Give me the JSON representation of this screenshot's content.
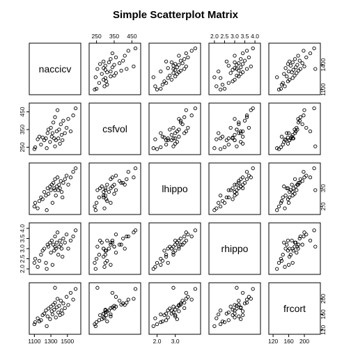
{
  "chart_data": {
    "type": "scatter",
    "title": "Simple Scatterplot Matrix",
    "variables": [
      "naccicv",
      "csfvol",
      "lhippo",
      "rhippo",
      "frcort"
    ],
    "axis_ticks": {
      "naccicv": {
        "values": [
          1100,
          1300,
          1500
        ],
        "labels": [
          "1100",
          "1300",
          "1500"
        ]
      },
      "csfvol": {
        "values": [
          250,
          350,
          450
        ],
        "labels": [
          "250",
          "350",
          "450"
        ]
      },
      "lhippo": {
        "values": [
          2.0,
          3.0
        ],
        "labels": [
          "2.0",
          "3.0"
        ]
      },
      "rhippo": {
        "values": [
          2.0,
          2.5,
          3.0,
          3.5,
          4.0
        ],
        "labels": [
          "2.0",
          "2.5",
          "3.0",
          "3.5",
          "4.0"
        ]
      },
      "frcort": {
        "values": [
          120,
          160,
          200
        ],
        "labels": [
          "120",
          "160",
          "200"
        ]
      }
    },
    "axis_ticks_right_top": {
      "naccicv": {
        "values": [
          1100,
          1400
        ],
        "labels": [
          "1100",
          "1400"
        ]
      },
      "lhippo": {
        "values": [
          2.0,
          3.0
        ],
        "labels": [
          "2.0",
          "3.0"
        ]
      },
      "frcort": {
        "values": [
          120,
          160,
          200
        ],
        "labels": [
          "120",
          "160",
          "200"
        ]
      }
    },
    "ranges": {
      "naccicv": [
        1080,
        1620
      ],
      "csfvol": [
        228,
        480
      ],
      "lhippo": [
        1.75,
        4.2
      ],
      "rhippo": [
        1.9,
        4.1
      ],
      "frcort": [
        118,
        232
      ]
    },
    "observations": [
      {
        "naccicv": 1100,
        "csfvol": 240,
        "lhippo": 2.0,
        "rhippo": 2.3,
        "frcort": 135
      },
      {
        "naccicv": 1110,
        "csfvol": 250,
        "lhippo": 2.2,
        "rhippo": 2.5,
        "frcort": 140
      },
      {
        "naccicv": 1140,
        "csfvol": 295,
        "lhippo": 1.9,
        "rhippo": 2.1,
        "frcort": 150
      },
      {
        "naccicv": 1180,
        "csfvol": 265,
        "lhippo": 2.5,
        "rhippo": 2.7,
        "frcort": 145
      },
      {
        "naccicv": 1200,
        "csfvol": 305,
        "lhippo": 2.4,
        "rhippo": 2.9,
        "frcort": 158
      },
      {
        "naccicv": 1220,
        "csfvol": 290,
        "lhippo": 2.8,
        "rhippo": 3.0,
        "frcort": 162
      },
      {
        "naccicv": 1240,
        "csfvol": 300,
        "lhippo": 2.6,
        "rhippo": 2.3,
        "frcort": 170
      },
      {
        "naccicv": 1260,
        "csfvol": 330,
        "lhippo": 3.0,
        "rhippo": 3.2,
        "frcort": 155
      },
      {
        "naccicv": 1270,
        "csfvol": 350,
        "lhippo": 2.7,
        "rhippo": 3.1,
        "frcort": 175
      },
      {
        "naccicv": 1290,
        "csfvol": 280,
        "lhippo": 3.1,
        "rhippo": 3.3,
        "frcort": 148
      },
      {
        "naccicv": 1300,
        "csfvol": 360,
        "lhippo": 2.9,
        "rhippo": 2.8,
        "frcort": 180
      },
      {
        "naccicv": 1310,
        "csfvol": 310,
        "lhippo": 3.2,
        "rhippo": 3.4,
        "frcort": 168
      },
      {
        "naccicv": 1320,
        "csfvol": 330,
        "lhippo": 2.2,
        "rhippo": 2.2,
        "frcort": 160
      },
      {
        "naccicv": 1330,
        "csfvol": 390,
        "lhippo": 3.3,
        "rhippo": 3.2,
        "frcort": 185
      },
      {
        "naccicv": 1340,
        "csfvol": 300,
        "lhippo": 3.0,
        "rhippo": 2.9,
        "frcort": 172
      },
      {
        "naccicv": 1350,
        "csfvol": 420,
        "lhippo": 3.5,
        "rhippo": 3.6,
        "frcort": 190
      },
      {
        "naccicv": 1360,
        "csfvol": 290,
        "lhippo": 2.6,
        "rhippo": 3.0,
        "frcort": 152
      },
      {
        "naccicv": 1370,
        "csfvol": 340,
        "lhippo": 3.1,
        "rhippo": 3.3,
        "frcort": 178
      },
      {
        "naccicv": 1380,
        "csfvol": 460,
        "lhippo": 3.6,
        "rhippo": 3.8,
        "frcort": 200
      },
      {
        "naccicv": 1390,
        "csfvol": 300,
        "lhippo": 2.9,
        "rhippo": 2.7,
        "frcort": 165
      },
      {
        "naccicv": 1400,
        "csfvol": 350,
        "lhippo": 3.2,
        "rhippo": 3.1,
        "frcort": 182
      },
      {
        "naccicv": 1410,
        "csfvol": 270,
        "lhippo": 3.0,
        "rhippo": 3.4,
        "frcort": 158
      },
      {
        "naccicv": 1420,
        "csfvol": 380,
        "lhippo": 3.4,
        "rhippo": 3.2,
        "frcort": 195
      },
      {
        "naccicv": 1430,
        "csfvol": 320,
        "lhippo": 2.8,
        "rhippo": 3.0,
        "frcort": 170
      },
      {
        "naccicv": 1450,
        "csfvol": 400,
        "lhippo": 3.3,
        "rhippo": 3.5,
        "frcort": 188
      },
      {
        "naccicv": 1470,
        "csfvol": 330,
        "lhippo": 3.5,
        "rhippo": 3.3,
        "frcort": 176
      },
      {
        "naccicv": 1490,
        "csfvol": 360,
        "lhippo": 3.7,
        "rhippo": 3.7,
        "frcort": 205
      },
      {
        "naccicv": 1510,
        "csfvol": 410,
        "lhippo": 3.2,
        "rhippo": 3.0,
        "frcort": 184
      },
      {
        "naccicv": 1540,
        "csfvol": 340,
        "lhippo": 3.6,
        "rhippo": 3.4,
        "frcort": 215
      },
      {
        "naccicv": 1570,
        "csfvol": 430,
        "lhippo": 3.9,
        "rhippo": 3.6,
        "frcort": 198
      },
      {
        "naccicv": 1600,
        "csfvol": 470,
        "lhippo": 4.1,
        "rhippo": 3.9,
        "frcort": 225
      },
      {
        "naccicv": 1250,
        "csfvol": 245,
        "lhippo": 1.8,
        "rhippo": 2.0,
        "frcort": 130
      },
      {
        "naccicv": 1160,
        "csfvol": 310,
        "lhippo": 2.3,
        "rhippo": 2.4,
        "frcort": 142
      },
      {
        "naccicv": 1440,
        "csfvol": 290,
        "lhippo": 2.5,
        "rhippo": 2.6,
        "frcort": 162
      },
      {
        "naccicv": 1350,
        "csfvol": 255,
        "lhippo": 2.9,
        "rhippo": 3.1,
        "frcort": 228
      }
    ],
    "grid": false,
    "legend": "none"
  }
}
